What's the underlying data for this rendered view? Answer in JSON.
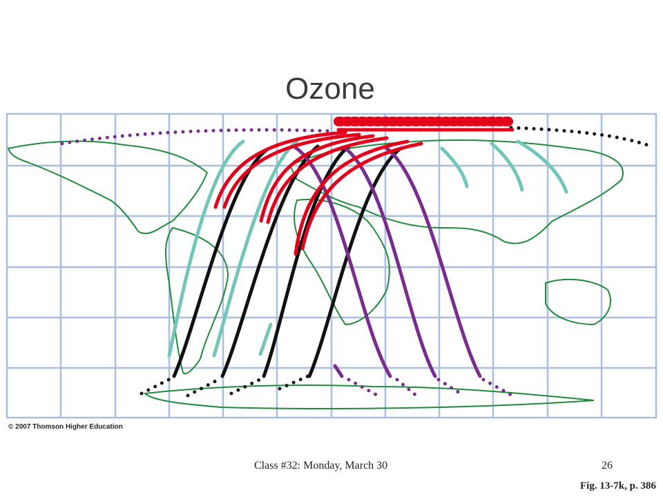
{
  "title": "Ozone",
  "copyright": "© 2007 Thomson Higher Education",
  "footer": {
    "left": "Class #32: Monday, March 30",
    "page": "26"
  },
  "caption": "Fig. 13-7k, p. 386"
}
